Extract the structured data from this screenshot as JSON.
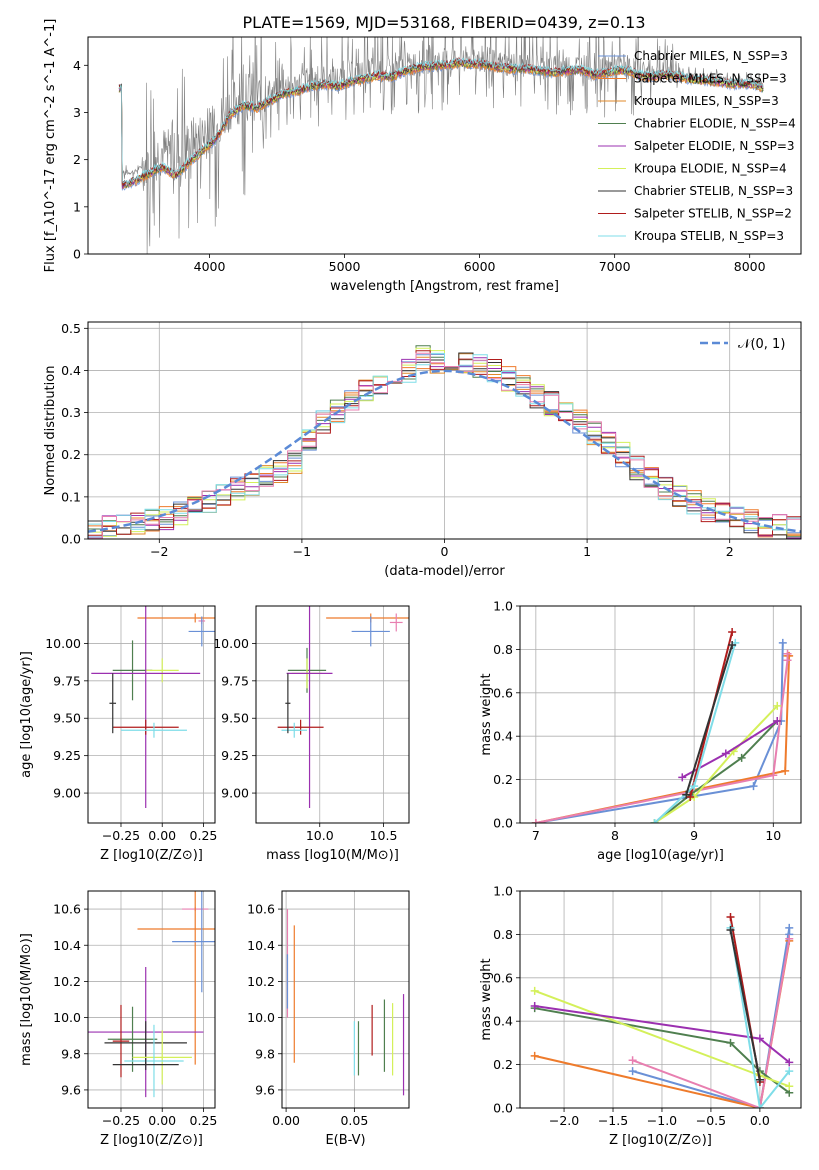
{
  "chart_data": [
    {
      "id": "spectrum",
      "type": "line",
      "title": "PLATE=1569, MJD=53168, FIBERID=0439, z=0.13",
      "xlabel": "wavelength [Angstrom, rest frame]",
      "ylabel": "Flux [f_λ10^-17 erg cm^-2 s^-1 A^-1]",
      "xlim": [
        3100,
        8380
      ],
      "ylim": [
        0,
        4.6
      ],
      "xticks": [
        "4000",
        "5000",
        "6000",
        "7000",
        "8000"
      ],
      "yticks": [
        "0",
        "1",
        "2",
        "3",
        "4"
      ],
      "grid": false,
      "legend_position": "upper-right",
      "data_flux": {
        "x": [
          3350,
          3450,
          3550,
          3650,
          3750,
          3850,
          3950,
          4050,
          4150,
          4250,
          4350,
          4450,
          4550,
          4650,
          4750,
          4850,
          4950,
          5050,
          5150,
          5250,
          5350,
          5450,
          5550,
          5650,
          5750,
          5850,
          5950,
          6050,
          6150,
          6250,
          6350,
          6450,
          6550,
          6650,
          6750,
          6850,
          6950,
          7050,
          7150,
          7250,
          7350,
          7450,
          7550,
          7650,
          7750,
          7850,
          7950,
          8050,
          8100
        ],
        "y": [
          1.7,
          1.75,
          1.95,
          2.2,
          2.05,
          2.35,
          2.5,
          2.7,
          3.15,
          3.35,
          3.3,
          3.4,
          3.55,
          3.6,
          3.7,
          3.75,
          3.72,
          3.8,
          3.85,
          3.9,
          3.88,
          4.0,
          4.05,
          4.08,
          4.1,
          4.15,
          4.12,
          4.1,
          4.05,
          4.0,
          4.02,
          3.98,
          3.95,
          3.98,
          4.0,
          3.9,
          3.95,
          4.0,
          3.92,
          3.85,
          3.9,
          3.88,
          3.8,
          3.78,
          3.75,
          3.7,
          3.7,
          3.68,
          3.6
        ]
      },
      "models": {
        "x": [
          3350,
          3450,
          3550,
          3650,
          3750,
          3850,
          3950,
          4050,
          4150,
          4250,
          4350,
          4450,
          4550,
          4650,
          4750,
          4850,
          4950,
          5050,
          5150,
          5250,
          5350,
          5450,
          5550,
          5650,
          5750,
          5850,
          5950,
          6050,
          6150,
          6250,
          6350,
          6450,
          6550,
          6650,
          6750,
          6850,
          6950,
          7050,
          7150,
          7250,
          7350,
          7450,
          7550,
          7650,
          7750,
          7850,
          7950,
          8050,
          8100
        ],
        "y": [
          1.45,
          1.55,
          1.7,
          1.85,
          1.65,
          1.95,
          2.2,
          2.45,
          2.95,
          3.15,
          3.1,
          3.25,
          3.4,
          3.45,
          3.55,
          3.6,
          3.55,
          3.65,
          3.72,
          3.78,
          3.75,
          3.88,
          3.95,
          3.98,
          4.0,
          4.05,
          4.02,
          4.0,
          3.95,
          3.92,
          3.92,
          3.88,
          3.85,
          3.88,
          3.9,
          3.8,
          3.85,
          3.9,
          3.82,
          3.75,
          3.8,
          3.78,
          3.7,
          3.68,
          3.66,
          3.6,
          3.6,
          3.58,
          3.5
        ]
      },
      "series": [
        {
          "name": "Chabrier MILES, N_SSP=3",
          "color": "#6a90d6"
        },
        {
          "name": "Salpeter MILES, N_SSP=3",
          "color": "#ee7b2c"
        },
        {
          "name": "Kroupa MILES, N_SSP=3",
          "color": "#e08a2a"
        },
        {
          "name": "Chabrier ELODIE, N_SSP=4",
          "color": "#4f7f4f"
        },
        {
          "name": "Salpeter ELODIE, N_SSP=3",
          "color": "#9b30b0"
        },
        {
          "name": "Kroupa ELODIE, N_SSP=4",
          "color": "#d4f05a"
        },
        {
          "name": "Chabrier STELIB, N_SSP=3",
          "color": "#333333"
        },
        {
          "name": "Salpeter STELIB, N_SSP=2",
          "color": "#b01c1c"
        },
        {
          "name": "Kroupa STELIB, N_SSP=3",
          "color": "#7fdde8"
        }
      ]
    },
    {
      "id": "residuals",
      "type": "line",
      "xlabel": "(data-model)/error",
      "ylabel": "Normed distribution",
      "xlim": [
        -2.5,
        2.5
      ],
      "ylim": [
        0,
        0.515
      ],
      "xticks": [
        "−2",
        "−1",
        "0",
        "1",
        "2"
      ],
      "yticks": [
        "0.0",
        "0.1",
        "0.2",
        "0.3",
        "0.4",
        "0.5"
      ],
      "grid": true,
      "legend_position": "upper-right",
      "gaussian_label": "𝒩(0, 1)",
      "gaussian_color": "#5b8ad6",
      "hist_bins": [
        -2.5,
        -2.4,
        -2.3,
        -2.2,
        -2.1,
        -2.0,
        -1.9,
        -1.8,
        -1.7,
        -1.6,
        -1.5,
        -1.4,
        -1.3,
        -1.2,
        -1.1,
        -1.0,
        -0.9,
        -0.8,
        -0.7,
        -0.6,
        -0.5,
        -0.4,
        -0.3,
        -0.2,
        -0.1,
        0.0,
        0.1,
        0.2,
        0.3,
        0.4,
        0.5,
        0.6,
        0.7,
        0.8,
        0.9,
        1.0,
        1.1,
        1.2,
        1.3,
        1.4,
        1.5,
        1.6,
        1.7,
        1.8,
        1.9,
        2.0,
        2.1,
        2.2,
        2.3,
        2.4,
        2.5
      ],
      "hist_values": [
        0.015,
        0.025,
        0.03,
        0.035,
        0.045,
        0.05,
        0.06,
        0.075,
        0.09,
        0.105,
        0.12,
        0.13,
        0.145,
        0.16,
        0.18,
        0.24,
        0.28,
        0.3,
        0.33,
        0.35,
        0.36,
        0.38,
        0.4,
        0.43,
        0.42,
        0.41,
        0.42,
        0.41,
        0.4,
        0.38,
        0.36,
        0.34,
        0.32,
        0.3,
        0.28,
        0.25,
        0.23,
        0.2,
        0.17,
        0.15,
        0.12,
        0.1,
        0.085,
        0.07,
        0.06,
        0.05,
        0.04,
        0.035,
        0.03,
        0.025
      ],
      "series_colors": [
        "#6a90d6",
        "#ee7b2c",
        "#e08a2a",
        "#4f7f4f",
        "#9b30b0",
        "#d4f05a",
        "#333333",
        "#b01c1c",
        "#7fdde8",
        "#e87fb0"
      ]
    },
    {
      "id": "age-vs-Z",
      "type": "scatter",
      "xlabel": "Z [log10(Z/Z⊙)]",
      "ylabel": "age  [log10(age/yr)]",
      "xlim": [
        -0.45,
        0.32
      ],
      "ylim": [
        8.8,
        10.25
      ],
      "xticks": [
        "−0.25",
        "0.00",
        "0.25"
      ],
      "yticks": [
        "9.00",
        "9.25",
        "9.50",
        "9.75",
        "10.00"
      ],
      "grid": true,
      "points": [
        {
          "x": 0.2,
          "y": 10.17,
          "xerr": 0.35,
          "yerr": 0.03,
          "color": "#ee7b2c"
        },
        {
          "x": 0.24,
          "y": 10.15,
          "xerr": 0.02,
          "yerr": 0.02,
          "color": "#e87fb0"
        },
        {
          "x": 0.24,
          "y": 10.08,
          "xerr": 0.08,
          "yerr": 0.1,
          "color": "#6a90d6"
        },
        {
          "x": -0.18,
          "y": 9.82,
          "xerr": 0.12,
          "yerr": 0.2,
          "color": "#4f7f4f"
        },
        {
          "x": 0.0,
          "y": 9.82,
          "xerr": 0.1,
          "yerr": 0.08,
          "color": "#d4f05a"
        },
        {
          "x": -0.1,
          "y": 9.8,
          "xerr": 0.33,
          "yerr": 0.9,
          "color": "#9b30b0"
        },
        {
          "x": -0.1,
          "y": 9.44,
          "xerr": 0.2,
          "yerr": 0.05,
          "color": "#b01c1c"
        },
        {
          "x": -0.05,
          "y": 9.42,
          "xerr": 0.2,
          "yerr": 0.05,
          "color": "#7fdde8"
        },
        {
          "x": -0.3,
          "y": 9.6,
          "xerr": 0.02,
          "yerr": 0.2,
          "color": "#333333"
        }
      ]
    },
    {
      "id": "age-vs-mass",
      "type": "scatter",
      "xlabel": "mass [log10(M/M⊙)]",
      "ylabel": "",
      "xlim": [
        9.5,
        10.7
      ],
      "ylim": [
        8.8,
        10.25
      ],
      "xticks": [
        "10.0",
        "10.5"
      ],
      "yticks": [
        "9.00",
        "9.25",
        "9.50",
        "9.75",
        "10.00"
      ],
      "grid": true,
      "points": [
        {
          "x": 10.4,
          "y": 10.17,
          "xerr": 0.35,
          "yerr": 0.03,
          "color": "#ee7b2c"
        },
        {
          "x": 10.6,
          "y": 10.14,
          "xerr": 0.05,
          "yerr": 0.06,
          "color": "#e87fb0"
        },
        {
          "x": 10.4,
          "y": 10.08,
          "xerr": 0.15,
          "yerr": 0.1,
          "color": "#6a90d6"
        },
        {
          "x": 9.9,
          "y": 9.82,
          "xerr": 0.15,
          "yerr": 0.15,
          "color": "#4f7f4f"
        },
        {
          "x": 9.9,
          "y": 9.8,
          "xerr": 0.12,
          "yerr": 0.1,
          "color": "#d4f05a"
        },
        {
          "x": 9.92,
          "y": 9.8,
          "xerr": 0.18,
          "yerr": 0.9,
          "color": "#9b30b0"
        },
        {
          "x": 9.85,
          "y": 9.44,
          "xerr": 0.18,
          "yerr": 0.05,
          "color": "#b01c1c"
        },
        {
          "x": 9.8,
          "y": 9.42,
          "xerr": 0.1,
          "yerr": 0.05,
          "color": "#7fdde8"
        },
        {
          "x": 9.75,
          "y": 9.6,
          "xerr": 0.02,
          "yerr": 0.2,
          "color": "#333333"
        }
      ]
    },
    {
      "id": "massweight-vs-age",
      "type": "line",
      "xlabel": "age  [log10(age/yr)]",
      "ylabel": "mass weight",
      "xlim": [
        6.8,
        10.35
      ],
      "ylim": [
        0,
        1.0
      ],
      "xticks": [
        "7",
        "8",
        "9",
        "10"
      ],
      "yticks": [
        "0.0",
        "0.2",
        "0.4",
        "0.6",
        "0.8",
        "1.0"
      ],
      "grid": true,
      "series": [
        {
          "color": "#6a90d6",
          "x": [
            7.0,
            9.75,
            10.1,
            10.12
          ],
          "y": [
            0.0,
            0.17,
            0.47,
            0.83
          ]
        },
        {
          "color": "#ee7b2c",
          "x": [
            7.0,
            10.15,
            10.2,
            10.18
          ],
          "y": [
            0.0,
            0.24,
            0.77,
            0.77
          ]
        },
        {
          "color": "#e87fb0",
          "x": [
            7.0,
            10.0,
            10.18,
            10.18
          ],
          "y": [
            0.0,
            0.22,
            0.75,
            0.78
          ]
        },
        {
          "color": "#4f7f4f",
          "x": [
            8.5,
            8.95,
            9.6,
            10.05
          ],
          "y": [
            0.0,
            0.13,
            0.3,
            0.47
          ]
        },
        {
          "color": "#d4f05a",
          "x": [
            8.5,
            9.0,
            9.5,
            10.05
          ],
          "y": [
            0.0,
            0.12,
            0.33,
            0.54
          ]
        },
        {
          "color": "#9b30b0",
          "x": [
            8.85,
            9.4,
            10.05
          ],
          "y": [
            0.21,
            0.32,
            0.47
          ]
        },
        {
          "color": "#b01c1c",
          "x": [
            8.95,
            9.48
          ],
          "y": [
            0.12,
            0.88
          ]
        },
        {
          "color": "#7fdde8",
          "x": [
            8.5,
            9.0,
            9.52
          ],
          "y": [
            0.0,
            0.17,
            0.83
          ]
        },
        {
          "color": "#333333",
          "x": [
            8.9,
            9.48
          ],
          "y": [
            0.13,
            0.82
          ]
        }
      ]
    },
    {
      "id": "mass-vs-Z",
      "type": "scatter",
      "xlabel": "Z [log10(Z/Z⊙)]",
      "ylabel": "mass [log10(M/M⊙)]",
      "xlim": [
        -0.45,
        0.32
      ],
      "ylim": [
        9.5,
        10.7
      ],
      "xticks": [
        "−0.25",
        "0.00",
        "0.25"
      ],
      "yticks": [
        "9.6",
        "9.8",
        "10.0",
        "10.2",
        "10.4",
        "10.6"
      ],
      "grid": true,
      "points": [
        {
          "x": 0.2,
          "y": 10.6,
          "xerr": 0.08,
          "yerr": 0.01,
          "color": "#e87fb0"
        },
        {
          "x": 0.2,
          "y": 10.49,
          "xerr": 0.35,
          "yerr": 0.75,
          "color": "#ee7b2c"
        },
        {
          "x": 0.24,
          "y": 10.42,
          "xerr": 0.18,
          "yerr": 0.28,
          "color": "#6a90d6"
        },
        {
          "x": -0.1,
          "y": 9.92,
          "xerr": 0.35,
          "yerr": 0.36,
          "color": "#9b30b0"
        },
        {
          "x": -0.18,
          "y": 9.88,
          "xerr": 0.15,
          "yerr": 0.18,
          "color": "#4f7f4f"
        },
        {
          "x": -0.25,
          "y": 9.87,
          "xerr": 0.05,
          "yerr": 0.2,
          "color": "#b01c1c"
        },
        {
          "x": -0.1,
          "y": 9.86,
          "xerr": 0.25,
          "yerr": 0.12,
          "color": "#333333"
        },
        {
          "x": 0.0,
          "y": 9.78,
          "xerr": 0.18,
          "yerr": 0.15,
          "color": "#d4f05a"
        },
        {
          "x": -0.05,
          "y": 9.76,
          "xerr": 0.18,
          "yerr": 0.2,
          "color": "#7fdde8"
        },
        {
          "x": -0.1,
          "y": 9.74,
          "xerr": 0.2,
          "yerr": 0.03,
          "color": "#333333"
        }
      ]
    },
    {
      "id": "mass-vs-EBV",
      "type": "scatter",
      "xlabel": "E(B-V)",
      "ylabel": "",
      "xlim": [
        -0.003,
        0.09
      ],
      "ylim": [
        9.5,
        10.7
      ],
      "xticks": [
        "0.00",
        "0.05"
      ],
      "yticks": [
        "9.6",
        "9.8",
        "10.0",
        "10.2",
        "10.4",
        "10.6"
      ],
      "grid": true,
      "points": [
        {
          "x": 0.001,
          "y": 10.3,
          "xerr": 0.0,
          "yerr": 0.3,
          "color": "#e87fb0"
        },
        {
          "x": 0.001,
          "y": 10.2,
          "xerr": 0.0,
          "yerr": 0.15,
          "color": "#6a90d6"
        },
        {
          "x": 0.006,
          "y": 10.13,
          "xerr": 0.0,
          "yerr": 0.38,
          "color": "#ee7b2c"
        },
        {
          "x": 0.05,
          "y": 9.83,
          "xerr": 0.0,
          "yerr": 0.15,
          "color": "#7fdde8"
        },
        {
          "x": 0.053,
          "y": 9.83,
          "xerr": 0.0,
          "yerr": 0.15,
          "color": "#4f7f4f"
        },
        {
          "x": 0.063,
          "y": 9.93,
          "xerr": 0.0,
          "yerr": 0.14,
          "color": "#b01c1c"
        },
        {
          "x": 0.072,
          "y": 9.9,
          "xerr": 0.0,
          "yerr": 0.2,
          "color": "#4f7f4f"
        },
        {
          "x": 0.078,
          "y": 9.88,
          "xerr": 0.0,
          "yerr": 0.2,
          "color": "#d4f05a"
        },
        {
          "x": 0.086,
          "y": 9.85,
          "xerr": 0.0,
          "yerr": 0.28,
          "color": "#9b30b0"
        }
      ]
    },
    {
      "id": "massweight-vs-Z",
      "type": "line",
      "xlabel": "Z [log10(Z/Z⊙)]",
      "ylabel": "mass weight",
      "xlim": [
        -2.45,
        0.42
      ],
      "ylim": [
        0,
        1.0
      ],
      "xticks": [
        "−2.0",
        "−1.5",
        "−1.0",
        "−0.5",
        "0.0"
      ],
      "yticks": [
        "0.0",
        "0.2",
        "0.4",
        "0.6",
        "0.8",
        "1.0"
      ],
      "grid": true,
      "series": [
        {
          "color": "#6a90d6",
          "x": [
            -1.3,
            0.0,
            0.3,
            0.3
          ],
          "y": [
            0.17,
            0.0,
            0.83,
            0.8
          ]
        },
        {
          "color": "#ee7b2c",
          "x": [
            -2.3,
            0.0,
            0.3
          ],
          "y": [
            0.24,
            0.0,
            0.77
          ]
        },
        {
          "color": "#e87fb0",
          "x": [
            -1.3,
            0.0,
            0.3
          ],
          "y": [
            0.22,
            0.0,
            0.78
          ]
        },
        {
          "color": "#4f7f4f",
          "x": [
            -2.3,
            -0.3,
            0.0,
            0.3
          ],
          "y": [
            0.46,
            0.3,
            0.17,
            0.07
          ]
        },
        {
          "color": "#d4f05a",
          "x": [
            -2.3,
            0.0,
            0.3
          ],
          "y": [
            0.54,
            0.15,
            0.1
          ]
        },
        {
          "color": "#9b30b0",
          "x": [
            -2.3,
            0.0,
            0.3
          ],
          "y": [
            0.47,
            0.32,
            0.21
          ]
        },
        {
          "color": "#b01c1c",
          "x": [
            -0.3,
            0.0
          ],
          "y": [
            0.88,
            0.12
          ]
        },
        {
          "color": "#7fdde8",
          "x": [
            -0.3,
            0.0,
            0.3
          ],
          "y": [
            0.83,
            0.0,
            0.17
          ]
        },
        {
          "color": "#333333",
          "x": [
            -0.3,
            0.0
          ],
          "y": [
            0.82,
            0.13
          ]
        }
      ]
    }
  ]
}
